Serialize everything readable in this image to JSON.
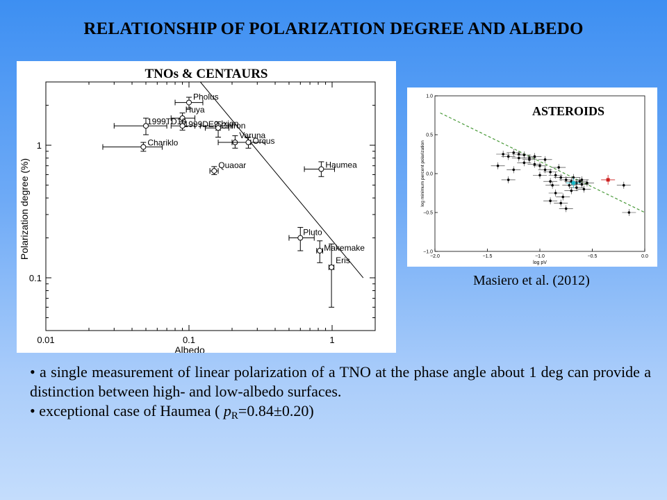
{
  "slide_title": "RELATIONSHIP OF POLARIZATION DEGREE AND ALBEDO",
  "chart_data": [
    {
      "type": "scatter",
      "title": "TNOs & CENTAURS",
      "xlabel": "Albedo",
      "ylabel": "Polarization degree (%)",
      "xscale": "log",
      "yscale": "log",
      "xlim": [
        0.01,
        2.0
      ],
      "ylim": [
        0.04,
        3.0
      ],
      "xticks": [
        "0.01",
        "0.1",
        "1"
      ],
      "yticks": [
        "0.1",
        "1"
      ],
      "points": [
        {
          "name": "Pholus",
          "x": 0.1,
          "y": 2.1,
          "xerr": [
            0.08,
            0.125
          ],
          "yerr": [
            1.9,
            2.3
          ]
        },
        {
          "name": "Huya",
          "x": 0.09,
          "y": 1.6,
          "xerr": [
            0.075,
            0.11
          ],
          "yerr": [
            1.45,
            1.75
          ]
        },
        {
          "name": "1999DE9",
          "x": 0.09,
          "y": 1.4,
          "xerr": [
            0.075,
            0.11
          ],
          "yerr": [
            1.3,
            1.5
          ]
        },
        {
          "name": "1999TD10",
          "x": 0.05,
          "y": 1.4,
          "xerr": [
            0.03,
            0.07
          ],
          "yerr": [
            1.2,
            1.6
          ]
        },
        {
          "name": "Chiron",
          "x": 0.16,
          "y": 1.4,
          "xerr": [
            0.12,
            0.2
          ],
          "yerr": [
            1.3,
            1.5
          ]
        },
        {
          "name": "Ixion",
          "x": 0.16,
          "y": 1.35,
          "xerr": [
            0.13,
            0.19
          ],
          "yerr": [
            1.15,
            1.5
          ]
        },
        {
          "name": "Varuna",
          "x": 0.21,
          "y": 1.05,
          "xerr": [
            0.16,
            0.27
          ],
          "yerr": [
            0.95,
            1.18
          ]
        },
        {
          "name": "Orcus",
          "x": 0.26,
          "y": 1.05,
          "xerr": [
            0.2,
            0.34
          ],
          "yerr": [
            0.95,
            1.15
          ]
        },
        {
          "name": "Chariklo",
          "x": 0.048,
          "y": 0.97,
          "xerr": [
            0.025,
            0.065
          ],
          "yerr": [
            0.9,
            1.05
          ]
        },
        {
          "name": "Quaoar",
          "x": 0.15,
          "y": 0.64,
          "xerr": [
            0.14,
            0.16
          ],
          "yerr": [
            0.6,
            0.69
          ]
        },
        {
          "name": "Haumea",
          "x": 0.84,
          "y": 0.66,
          "xerr": [
            0.64,
            1.04
          ],
          "yerr": [
            0.58,
            0.75
          ]
        },
        {
          "name": "Pluto",
          "x": 0.6,
          "y": 0.2,
          "xerr": [
            0.5,
            0.75
          ],
          "yerr": [
            0.16,
            0.24
          ]
        },
        {
          "name": "Makemake",
          "x": 0.82,
          "y": 0.16,
          "xerr": [
            0.78,
            0.86
          ],
          "yerr": [
            0.13,
            0.19
          ]
        },
        {
          "name": "Eris",
          "x": 0.99,
          "y": 0.12,
          "xerr": [
            0.95,
            1.03
          ],
          "yerr": [
            0.06,
            0.18
          ]
        }
      ],
      "trend_line": {
        "x": [
          0.12,
          1.65
        ],
        "y": [
          3.0,
          0.1
        ]
      }
    },
    {
      "type": "scatter",
      "title": "ASTEROIDS",
      "xlabel": "log pV",
      "ylabel": "log minimum percent polarization",
      "xlim": [
        -2.0,
        0.0
      ],
      "ylim": [
        -1.0,
        1.0
      ],
      "xticks": [
        "−2.0",
        "−1.5",
        "−1.0",
        "−0.5",
        "0.0"
      ],
      "yticks": [
        "1.0",
        "0.5",
        "0.0",
        "−0.5",
        "−1.0"
      ],
      "points": [
        {
          "x": -1.35,
          "y": 0.25
        },
        {
          "x": -1.3,
          "y": 0.22
        },
        {
          "x": -1.25,
          "y": 0.27
        },
        {
          "x": -1.2,
          "y": 0.2
        },
        {
          "x": -1.15,
          "y": 0.24
        },
        {
          "x": -1.1,
          "y": 0.18
        },
        {
          "x": -1.05,
          "y": 0.12
        },
        {
          "x": -1.0,
          "y": 0.1
        },
        {
          "x": -0.95,
          "y": 0.05
        },
        {
          "x": -0.9,
          "y": 0.02
        },
        {
          "x": -0.85,
          "y": -0.02
        },
        {
          "x": -0.8,
          "y": -0.05
        },
        {
          "x": -0.75,
          "y": -0.08
        },
        {
          "x": -0.7,
          "y": -0.1
        },
        {
          "x": -0.65,
          "y": -0.12
        },
        {
          "x": -0.6,
          "y": -0.14
        },
        {
          "x": -1.4,
          "y": 0.1
        },
        {
          "x": -1.3,
          "y": -0.08
        },
        {
          "x": -1.2,
          "y": 0.25
        },
        {
          "x": -1.1,
          "y": 0.2
        },
        {
          "x": -0.95,
          "y": 0.18
        },
        {
          "x": -0.9,
          "y": -0.1
        },
        {
          "x": -0.85,
          "y": -0.25
        },
        {
          "x": -0.8,
          "y": -0.38
        },
        {
          "x": -0.75,
          "y": -0.45
        },
        {
          "x": -0.72,
          "y": -0.15
        },
        {
          "x": -0.68,
          "y": -0.05
        },
        {
          "x": -0.62,
          "y": -0.1
        },
        {
          "x": -0.58,
          "y": -0.2
        },
        {
          "x": -0.55,
          "y": -0.12
        },
        {
          "x": -0.9,
          "y": -0.35
        },
        {
          "x": -1.0,
          "y": -0.02
        },
        {
          "x": -1.15,
          "y": 0.14
        },
        {
          "x": -1.25,
          "y": 0.05
        },
        {
          "x": -1.05,
          "y": 0.22
        },
        {
          "x": -0.82,
          "y": 0.08
        },
        {
          "x": -0.7,
          "y": -0.22
        },
        {
          "x": -0.65,
          "y": -0.18
        },
        {
          "x": -0.78,
          "y": -0.3
        },
        {
          "x": -0.88,
          "y": -0.15
        },
        {
          "x": -0.2,
          "y": -0.15
        },
        {
          "x": -0.15,
          "y": -0.5
        },
        {
          "x": -0.6,
          "y": -0.08
        }
      ],
      "highlight": [
        {
          "name": "red",
          "x": -0.35,
          "y": -0.08,
          "color": "#cc1f1f"
        },
        {
          "name": "cyan",
          "x": -0.68,
          "y": -0.12,
          "color": "#17b8c8"
        }
      ],
      "trend_line": {
        "x": [
          -1.95,
          0.0
        ],
        "y": [
          0.78,
          -0.5
        ]
      },
      "trend_color": "#4a9a3a"
    }
  ],
  "source": "Masiero et al. (2012)",
  "bullets": {
    "one": "• a single measurement of linear polarization of a TNO at the phase angle about 1 deg can provide a distinction between high- and low-albedo surfaces.",
    "two_prefix": "• exceptional case of Haumea   ( ",
    "two_var": "p",
    "two_sub": "R",
    "two_suffix": "=0.84±0.20)"
  }
}
